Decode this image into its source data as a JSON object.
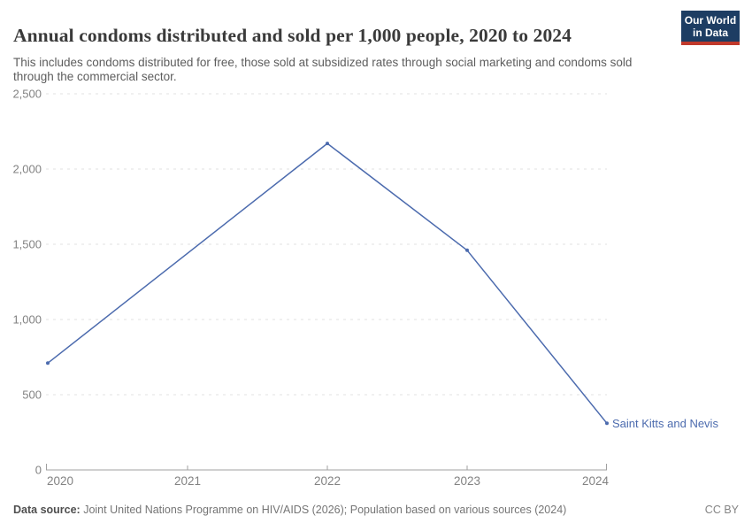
{
  "header": {
    "title": "Annual condoms distributed and sold per 1,000 people, 2020 to 2024",
    "subtitle": "This includes condoms distributed for free, those sold at subsidized rates through social marketing and condoms sold through the commercial sector."
  },
  "logo": {
    "line1": "Our World",
    "line2": "in Data",
    "bg_color": "#1d3d63",
    "accent_color": "#c0392b"
  },
  "chart_data": {
    "type": "line",
    "title": "Annual condoms distributed and sold per 1,000 people, 2020 to 2024",
    "xlabel": "",
    "ylabel": "",
    "xlim": [
      2020,
      2024
    ],
    "ylim": [
      0,
      2500
    ],
    "x_ticks": [
      2020,
      2021,
      2022,
      2023,
      2024
    ],
    "y_ticks": [
      0,
      500,
      1000,
      1500,
      2000,
      2500
    ],
    "grid": "horizontal-dashed",
    "legend_position": "end-of-line-label",
    "series": [
      {
        "name": "Saint Kitts and Nevis",
        "color": "#4c6bae",
        "points": [
          {
            "x": 2020,
            "y": 710
          },
          {
            "x": 2022,
            "y": 2170
          },
          {
            "x": 2023,
            "y": 1460
          },
          {
            "x": 2024,
            "y": 310
          }
        ]
      }
    ],
    "style": {
      "gridline_color": "#e2e2e2",
      "axis_color": "#a0a0a0",
      "tick_label_color": "#828282"
    }
  },
  "footer": {
    "source_label": "Data source:",
    "source_text": " Joint United Nations Programme on HIV/AIDS (2026); Population based on various sources (2024)",
    "license": "CC BY"
  }
}
